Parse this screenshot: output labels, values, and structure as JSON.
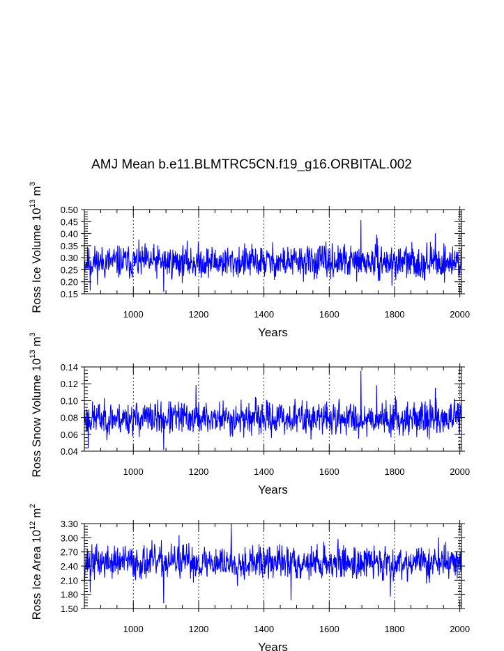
{
  "chart_data": [
    {
      "type": "line",
      "title": "AMJ Mean b.e11.BLMTRC5CN.f19_g16.ORBITAL.002",
      "xlabel": "Years",
      "ylabel": "Ross Ice Volume 10",
      "ylabel_exp1": "13",
      "ylabel_mid": " m",
      "ylabel_exp2": "3",
      "xlim": [
        850,
        2005
      ],
      "ylim": [
        0.15,
        0.5
      ],
      "xticks": [
        1000,
        1200,
        1400,
        1600,
        1800,
        2000
      ],
      "xtick_labels": [
        "1000",
        "1200",
        "1400",
        "1600",
        "1800",
        "2000"
      ],
      "yticks": [
        0.15,
        0.2,
        0.25,
        0.3,
        0.35,
        0.4,
        0.45,
        0.5
      ],
      "ytick_labels": [
        "0.15",
        "0.20",
        "0.25",
        "0.30",
        "0.35",
        "0.40",
        "0.45",
        "0.50"
      ],
      "gridlines_x": [
        1000,
        1200,
        1400,
        1600,
        1800,
        2000
      ],
      "series": [
        {
          "color": "#0000ff",
          "generator": {
            "mean": 0.282,
            "amp": 0.042,
            "min": 0.16,
            "max": 0.46,
            "seed": 11
          },
          "peaks": [
            {
              "x": 1697,
              "y": 0.455
            },
            {
              "x": 1093,
              "y": 0.16
            },
            {
              "x": 868,
              "y": 0.165
            },
            {
              "x": 1925,
              "y": 0.4
            },
            {
              "x": 1745,
              "y": 0.395
            },
            {
              "x": 1792,
              "y": 0.185
            }
          ]
        }
      ]
    },
    {
      "type": "line",
      "xlabel": "Years",
      "ylabel": "Ross Snow Volume 10",
      "ylabel_exp1": "13",
      "ylabel_mid": " m",
      "ylabel_exp2": "3",
      "xlim": [
        850,
        2005
      ],
      "ylim": [
        0.04,
        0.14
      ],
      "xticks": [
        1000,
        1200,
        1400,
        1600,
        1800,
        2000
      ],
      "xtick_labels": [
        "1000",
        "1200",
        "1400",
        "1600",
        "1800",
        "2000"
      ],
      "yticks": [
        0.04,
        0.06,
        0.08,
        0.1,
        0.12,
        0.14
      ],
      "ytick_labels": [
        "0.04",
        "0.06",
        "0.08",
        "0.10",
        "0.12",
        "0.14"
      ],
      "gridlines_x": [
        1000,
        1200,
        1400,
        1600,
        1800,
        2000
      ],
      "series": [
        {
          "color": "#0000ff",
          "generator": {
            "mean": 0.079,
            "amp": 0.012,
            "min": 0.042,
            "max": 0.136,
            "seed": 23
          },
          "peaks": [
            {
              "x": 1697,
              "y": 0.135
            },
            {
              "x": 1093,
              "y": 0.042
            },
            {
              "x": 862,
              "y": 0.044
            },
            {
              "x": 1745,
              "y": 0.118
            },
            {
              "x": 1925,
              "y": 0.115
            },
            {
              "x": 1192,
              "y": 0.118
            }
          ]
        }
      ]
    },
    {
      "type": "line",
      "xlabel": "Years",
      "ylabel": "Ross Ice Area 10",
      "ylabel_exp1": "12",
      "ylabel_mid": " m",
      "ylabel_exp2": "2",
      "xlim": [
        850,
        2005
      ],
      "ylim": [
        1.5,
        3.3
      ],
      "xticks": [
        1000,
        1200,
        1400,
        1600,
        1800,
        2000
      ],
      "xtick_labels": [
        "1000",
        "1200",
        "1400",
        "1600",
        "1800",
        "2000"
      ],
      "yticks": [
        1.5,
        1.8,
        2.1,
        2.4,
        2.7,
        3.0,
        3.3
      ],
      "ytick_labels": [
        "1.50",
        "1.80",
        "2.10",
        "2.40",
        "2.70",
        "3.00",
        "3.30"
      ],
      "gridlines_x": [
        1000,
        1200,
        1400,
        1600,
        1800,
        2000
      ],
      "series": [
        {
          "color": "#0000ff",
          "generator": {
            "mean": 2.48,
            "amp": 0.22,
            "min": 1.62,
            "max": 3.22,
            "seed": 37
          },
          "peaks": [
            {
              "x": 1300,
              "y": 3.22
            },
            {
              "x": 1093,
              "y": 1.62
            },
            {
              "x": 1483,
              "y": 1.68
            },
            {
              "x": 1787,
              "y": 1.76
            },
            {
              "x": 868,
              "y": 1.85
            },
            {
              "x": 1935,
              "y": 3.0
            },
            {
              "x": 1140,
              "y": 3.05
            }
          ]
        }
      ]
    }
  ]
}
